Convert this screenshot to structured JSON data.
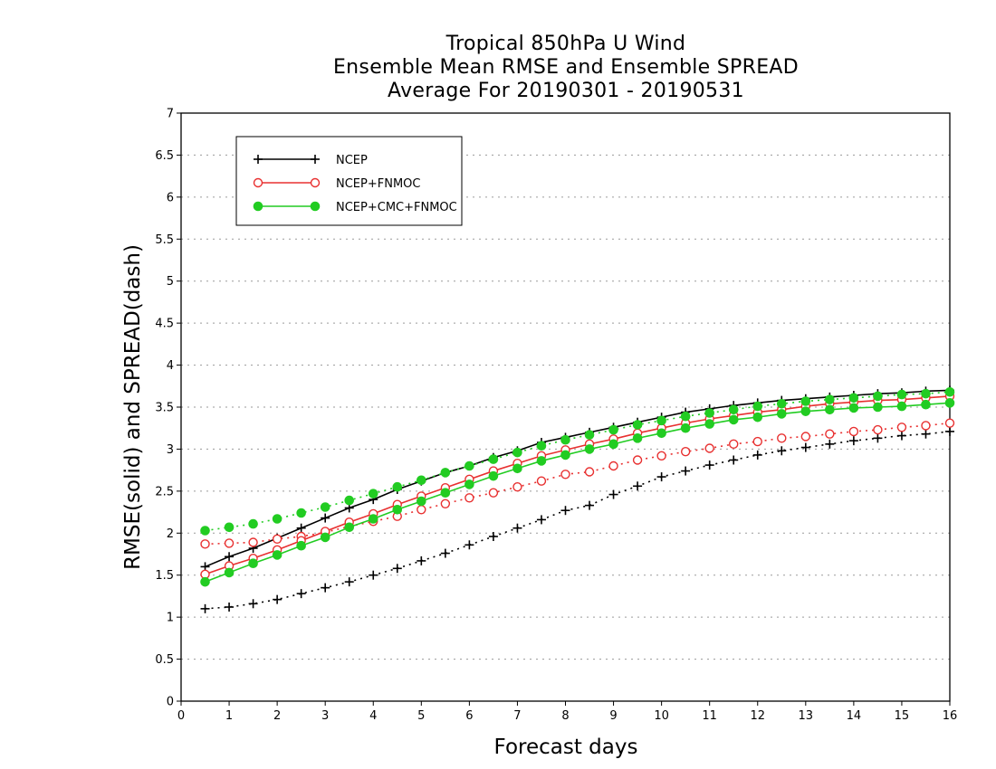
{
  "chart_data": {
    "type": "line",
    "title": [
      "Tropical 850hPa U Wind",
      "Ensemble Mean RMSE and Ensemble SPREAD",
      "Average For 20190301 - 20190531"
    ],
    "xlabel": "Forecast days",
    "ylabel": "RMSE(solid) and SPREAD(dash)",
    "xlim": [
      0,
      16
    ],
    "ylim": [
      0,
      7
    ],
    "xticks": [
      "0",
      "1",
      "2",
      "3",
      "4",
      "5",
      "6",
      "7",
      "8",
      "9",
      "10",
      "11",
      "12",
      "13",
      "14",
      "15",
      "16"
    ],
    "yticks": [
      "0",
      "0.5",
      "1",
      "1.5",
      "2",
      "2.5",
      "3",
      "3.5",
      "4",
      "4.5",
      "5",
      "5.5",
      "6",
      "6.5",
      "7"
    ],
    "grid": true,
    "legend_position": "top-left",
    "x": [
      0.5,
      1,
      1.5,
      2,
      2.5,
      3,
      3.5,
      4,
      4.5,
      5,
      5.5,
      6,
      6.5,
      7,
      7.5,
      8,
      8.5,
      9,
      9.5,
      10,
      10.5,
      11,
      11.5,
      12,
      12.5,
      13,
      13.5,
      14,
      14.5,
      15,
      15.5,
      16
    ],
    "series": [
      {
        "name": "NCEP",
        "color": "#000000",
        "marker": "plus",
        "rmse": [
          1.6,
          1.72,
          1.82,
          1.94,
          2.06,
          2.18,
          2.3,
          2.4,
          2.52,
          2.62,
          2.72,
          2.8,
          2.9,
          2.98,
          3.08,
          3.14,
          3.2,
          3.26,
          3.32,
          3.38,
          3.44,
          3.48,
          3.52,
          3.55,
          3.58,
          3.6,
          3.62,
          3.64,
          3.66,
          3.67,
          3.69,
          3.7
        ],
        "spread": [
          1.1,
          1.12,
          1.16,
          1.21,
          1.28,
          1.35,
          1.42,
          1.5,
          1.58,
          1.67,
          1.76,
          1.86,
          1.96,
          2.06,
          2.16,
          2.27,
          2.33,
          2.46,
          2.56,
          2.67,
          2.74,
          2.81,
          2.87,
          2.93,
          2.98,
          3.02,
          3.06,
          3.1,
          3.13,
          3.16,
          3.18,
          3.21
        ]
      },
      {
        "name": "NCEP+FNMOC",
        "color": "#e83030",
        "marker": "open-circle",
        "rmse": [
          1.51,
          1.61,
          1.7,
          1.8,
          1.91,
          2.02,
          2.13,
          2.23,
          2.34,
          2.44,
          2.54,
          2.64,
          2.74,
          2.83,
          2.92,
          2.99,
          3.06,
          3.12,
          3.19,
          3.25,
          3.31,
          3.36,
          3.4,
          3.44,
          3.47,
          3.51,
          3.54,
          3.56,
          3.58,
          3.59,
          3.61,
          3.63
        ],
        "spread": [
          1.87,
          1.88,
          1.89,
          1.93,
          1.96,
          2.01,
          2.08,
          2.14,
          2.2,
          2.28,
          2.35,
          2.42,
          2.48,
          2.55,
          2.62,
          2.7,
          2.73,
          2.8,
          2.87,
          2.92,
          2.97,
          3.01,
          3.06,
          3.09,
          3.13,
          3.15,
          3.18,
          3.21,
          3.23,
          3.26,
          3.28,
          3.31
        ]
      },
      {
        "name": "NCEP+CMC+FNMOC",
        "color": "#22cc22",
        "marker": "filled-circle",
        "rmse": [
          1.42,
          1.53,
          1.64,
          1.74,
          1.85,
          1.95,
          2.07,
          2.17,
          2.28,
          2.38,
          2.48,
          2.58,
          2.68,
          2.77,
          2.86,
          2.93,
          3.0,
          3.06,
          3.13,
          3.19,
          3.25,
          3.3,
          3.35,
          3.38,
          3.42,
          3.45,
          3.47,
          3.49,
          3.5,
          3.51,
          3.53,
          3.55
        ],
        "spread": [
          2.03,
          2.07,
          2.11,
          2.17,
          2.24,
          2.31,
          2.39,
          2.47,
          2.55,
          2.63,
          2.72,
          2.8,
          2.88,
          2.96,
          3.04,
          3.11,
          3.17,
          3.23,
          3.29,
          3.34,
          3.39,
          3.43,
          3.47,
          3.51,
          3.54,
          3.57,
          3.59,
          3.61,
          3.63,
          3.65,
          3.66,
          3.68
        ]
      }
    ]
  }
}
